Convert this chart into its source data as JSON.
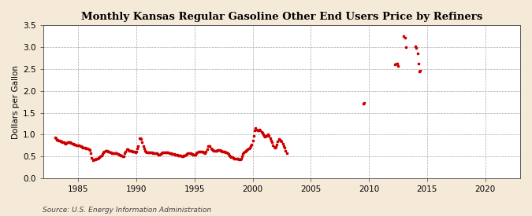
{
  "title": "Monthly Kansas Regular Gasoline Other End Users Price by Refiners",
  "ylabel": "Dollars per Gallon",
  "source": "Source: U.S. Energy Information Administration",
  "background_color": "#f5ead8",
  "plot_bg_color": "#ffffff",
  "dot_color": "#cc0000",
  "xlim": [
    1982,
    2023
  ],
  "ylim": [
    0.0,
    3.5
  ],
  "xticks": [
    1985,
    1990,
    1995,
    2000,
    2005,
    2010,
    2015,
    2020
  ],
  "yticks": [
    0.0,
    0.5,
    1.0,
    1.5,
    2.0,
    2.5,
    3.0,
    3.5
  ],
  "data": [
    [
      1983.0,
      0.94
    ],
    [
      1983.083,
      0.91
    ],
    [
      1983.167,
      0.89
    ],
    [
      1983.25,
      0.88
    ],
    [
      1983.333,
      0.86
    ],
    [
      1983.417,
      0.87
    ],
    [
      1983.5,
      0.85
    ],
    [
      1983.583,
      0.84
    ],
    [
      1983.667,
      0.83
    ],
    [
      1983.75,
      0.82
    ],
    [
      1983.833,
      0.81
    ],
    [
      1983.917,
      0.8
    ],
    [
      1984.0,
      0.81
    ],
    [
      1984.083,
      0.82
    ],
    [
      1984.167,
      0.83
    ],
    [
      1984.25,
      0.83
    ],
    [
      1984.333,
      0.82
    ],
    [
      1984.417,
      0.81
    ],
    [
      1984.5,
      0.8
    ],
    [
      1984.583,
      0.79
    ],
    [
      1984.667,
      0.78
    ],
    [
      1984.75,
      0.77
    ],
    [
      1984.833,
      0.76
    ],
    [
      1984.917,
      0.75
    ],
    [
      1985.0,
      0.76
    ],
    [
      1985.083,
      0.75
    ],
    [
      1985.167,
      0.74
    ],
    [
      1985.25,
      0.73
    ],
    [
      1985.333,
      0.72
    ],
    [
      1985.417,
      0.71
    ],
    [
      1985.5,
      0.7
    ],
    [
      1985.583,
      0.7
    ],
    [
      1985.667,
      0.69
    ],
    [
      1985.75,
      0.68
    ],
    [
      1985.833,
      0.68
    ],
    [
      1985.917,
      0.67
    ],
    [
      1986.0,
      0.65
    ],
    [
      1986.083,
      0.57
    ],
    [
      1986.167,
      0.47
    ],
    [
      1986.25,
      0.42
    ],
    [
      1986.333,
      0.43
    ],
    [
      1986.417,
      0.44
    ],
    [
      1986.5,
      0.44
    ],
    [
      1986.583,
      0.45
    ],
    [
      1986.667,
      0.46
    ],
    [
      1986.75,
      0.47
    ],
    [
      1986.833,
      0.48
    ],
    [
      1986.917,
      0.5
    ],
    [
      1987.0,
      0.52
    ],
    [
      1987.083,
      0.56
    ],
    [
      1987.167,
      0.6
    ],
    [
      1987.25,
      0.62
    ],
    [
      1987.333,
      0.63
    ],
    [
      1987.417,
      0.64
    ],
    [
      1987.5,
      0.63
    ],
    [
      1987.583,
      0.62
    ],
    [
      1987.667,
      0.61
    ],
    [
      1987.75,
      0.6
    ],
    [
      1987.833,
      0.59
    ],
    [
      1987.917,
      0.57
    ],
    [
      1988.0,
      0.57
    ],
    [
      1988.083,
      0.57
    ],
    [
      1988.167,
      0.57
    ],
    [
      1988.25,
      0.57
    ],
    [
      1988.333,
      0.57
    ],
    [
      1988.417,
      0.56
    ],
    [
      1988.5,
      0.55
    ],
    [
      1988.583,
      0.54
    ],
    [
      1988.667,
      0.53
    ],
    [
      1988.75,
      0.52
    ],
    [
      1988.833,
      0.51
    ],
    [
      1988.917,
      0.5
    ],
    [
      1989.0,
      0.57
    ],
    [
      1989.083,
      0.62
    ],
    [
      1989.167,
      0.66
    ],
    [
      1989.25,
      0.66
    ],
    [
      1989.333,
      0.65
    ],
    [
      1989.417,
      0.64
    ],
    [
      1989.5,
      0.64
    ],
    [
      1989.583,
      0.63
    ],
    [
      1989.667,
      0.62
    ],
    [
      1989.75,
      0.62
    ],
    [
      1989.833,
      0.61
    ],
    [
      1989.917,
      0.6
    ],
    [
      1990.0,
      0.62
    ],
    [
      1990.083,
      0.68
    ],
    [
      1990.167,
      0.74
    ],
    [
      1990.25,
      0.91
    ],
    [
      1990.333,
      0.92
    ],
    [
      1990.417,
      0.9
    ],
    [
      1990.5,
      0.82
    ],
    [
      1990.583,
      0.74
    ],
    [
      1990.667,
      0.68
    ],
    [
      1990.75,
      0.63
    ],
    [
      1990.833,
      0.61
    ],
    [
      1990.917,
      0.6
    ],
    [
      1991.0,
      0.6
    ],
    [
      1991.083,
      0.6
    ],
    [
      1991.167,
      0.6
    ],
    [
      1991.25,
      0.6
    ],
    [
      1991.333,
      0.59
    ],
    [
      1991.417,
      0.58
    ],
    [
      1991.5,
      0.58
    ],
    [
      1991.583,
      0.57
    ],
    [
      1991.667,
      0.57
    ],
    [
      1991.75,
      0.57
    ],
    [
      1991.833,
      0.56
    ],
    [
      1991.917,
      0.55
    ],
    [
      1992.0,
      0.55
    ],
    [
      1992.083,
      0.56
    ],
    [
      1992.167,
      0.58
    ],
    [
      1992.25,
      0.59
    ],
    [
      1992.333,
      0.6
    ],
    [
      1992.417,
      0.6
    ],
    [
      1992.5,
      0.6
    ],
    [
      1992.583,
      0.6
    ],
    [
      1992.667,
      0.6
    ],
    [
      1992.75,
      0.59
    ],
    [
      1992.833,
      0.58
    ],
    [
      1992.917,
      0.57
    ],
    [
      1993.0,
      0.57
    ],
    [
      1993.083,
      0.56
    ],
    [
      1993.167,
      0.56
    ],
    [
      1993.25,
      0.56
    ],
    [
      1993.333,
      0.55
    ],
    [
      1993.417,
      0.54
    ],
    [
      1993.5,
      0.54
    ],
    [
      1993.583,
      0.53
    ],
    [
      1993.667,
      0.53
    ],
    [
      1993.75,
      0.52
    ],
    [
      1993.833,
      0.52
    ],
    [
      1993.917,
      0.51
    ],
    [
      1994.0,
      0.51
    ],
    [
      1994.083,
      0.52
    ],
    [
      1994.167,
      0.53
    ],
    [
      1994.25,
      0.55
    ],
    [
      1994.333,
      0.56
    ],
    [
      1994.417,
      0.57
    ],
    [
      1994.5,
      0.57
    ],
    [
      1994.583,
      0.57
    ],
    [
      1994.667,
      0.57
    ],
    [
      1994.75,
      0.56
    ],
    [
      1994.833,
      0.56
    ],
    [
      1994.917,
      0.55
    ],
    [
      1995.0,
      0.54
    ],
    [
      1995.083,
      0.55
    ],
    [
      1995.167,
      0.57
    ],
    [
      1995.25,
      0.6
    ],
    [
      1995.333,
      0.61
    ],
    [
      1995.417,
      0.62
    ],
    [
      1995.5,
      0.62
    ],
    [
      1995.583,
      0.62
    ],
    [
      1995.667,
      0.61
    ],
    [
      1995.75,
      0.6
    ],
    [
      1995.833,
      0.59
    ],
    [
      1995.917,
      0.58
    ],
    [
      1996.0,
      0.62
    ],
    [
      1996.083,
      0.67
    ],
    [
      1996.167,
      0.73
    ],
    [
      1996.25,
      0.74
    ],
    [
      1996.333,
      0.73
    ],
    [
      1996.417,
      0.69
    ],
    [
      1996.5,
      0.66
    ],
    [
      1996.583,
      0.65
    ],
    [
      1996.667,
      0.64
    ],
    [
      1996.75,
      0.64
    ],
    [
      1996.833,
      0.64
    ],
    [
      1996.917,
      0.64
    ],
    [
      1997.0,
      0.65
    ],
    [
      1997.083,
      0.65
    ],
    [
      1997.167,
      0.65
    ],
    [
      1997.25,
      0.64
    ],
    [
      1997.333,
      0.63
    ],
    [
      1997.417,
      0.62
    ],
    [
      1997.5,
      0.62
    ],
    [
      1997.583,
      0.61
    ],
    [
      1997.667,
      0.6
    ],
    [
      1997.75,
      0.59
    ],
    [
      1997.833,
      0.58
    ],
    [
      1997.917,
      0.56
    ],
    [
      1998.0,
      0.53
    ],
    [
      1998.083,
      0.5
    ],
    [
      1998.167,
      0.49
    ],
    [
      1998.25,
      0.48
    ],
    [
      1998.333,
      0.47
    ],
    [
      1998.417,
      0.46
    ],
    [
      1998.5,
      0.46
    ],
    [
      1998.583,
      0.46
    ],
    [
      1998.667,
      0.46
    ],
    [
      1998.75,
      0.45
    ],
    [
      1998.833,
      0.44
    ],
    [
      1998.917,
      0.43
    ],
    [
      1999.0,
      0.45
    ],
    [
      1999.083,
      0.5
    ],
    [
      1999.167,
      0.56
    ],
    [
      1999.25,
      0.6
    ],
    [
      1999.333,
      0.62
    ],
    [
      1999.417,
      0.63
    ],
    [
      1999.5,
      0.65
    ],
    [
      1999.583,
      0.67
    ],
    [
      1999.667,
      0.68
    ],
    [
      1999.75,
      0.7
    ],
    [
      1999.833,
      0.74
    ],
    [
      1999.917,
      0.78
    ],
    [
      2000.0,
      0.87
    ],
    [
      2000.083,
      0.97
    ],
    [
      2000.167,
      1.09
    ],
    [
      2000.25,
      1.15
    ],
    [
      2000.333,
      1.12
    ],
    [
      2000.417,
      1.09
    ],
    [
      2000.5,
      1.1
    ],
    [
      2000.583,
      1.11
    ],
    [
      2000.667,
      1.1
    ],
    [
      2000.75,
      1.07
    ],
    [
      2000.833,
      1.04
    ],
    [
      2000.917,
      1.01
    ],
    [
      2001.0,
      0.98
    ],
    [
      2001.083,
      0.96
    ],
    [
      2001.167,
      0.97
    ],
    [
      2001.25,
      0.99
    ],
    [
      2001.333,
      1.0
    ],
    [
      2001.417,
      0.97
    ],
    [
      2001.5,
      0.91
    ],
    [
      2001.583,
      0.87
    ],
    [
      2001.667,
      0.82
    ],
    [
      2001.75,
      0.75
    ],
    [
      2001.833,
      0.72
    ],
    [
      2001.917,
      0.7
    ],
    [
      2002.0,
      0.72
    ],
    [
      2002.083,
      0.78
    ],
    [
      2002.167,
      0.85
    ],
    [
      2002.25,
      0.9
    ],
    [
      2002.333,
      0.88
    ],
    [
      2002.417,
      0.86
    ],
    [
      2002.5,
      0.84
    ],
    [
      2002.583,
      0.8
    ],
    [
      2002.667,
      0.74
    ],
    [
      2002.75,
      0.7
    ],
    [
      2002.833,
      0.64
    ],
    [
      2002.917,
      0.58
    ],
    [
      2009.5,
      1.71
    ],
    [
      2009.583,
      1.72
    ],
    [
      2012.25,
      2.6
    ],
    [
      2012.333,
      2.62
    ],
    [
      2012.417,
      2.62
    ],
    [
      2012.5,
      2.57
    ],
    [
      2013.0,
      3.25
    ],
    [
      2013.083,
      3.22
    ],
    [
      2013.167,
      3.0
    ],
    [
      2014.0,
      3.02
    ],
    [
      2014.083,
      2.98
    ],
    [
      2014.167,
      2.85
    ],
    [
      2014.25,
      2.62
    ],
    [
      2014.333,
      2.45
    ],
    [
      2014.417,
      2.46
    ]
  ]
}
